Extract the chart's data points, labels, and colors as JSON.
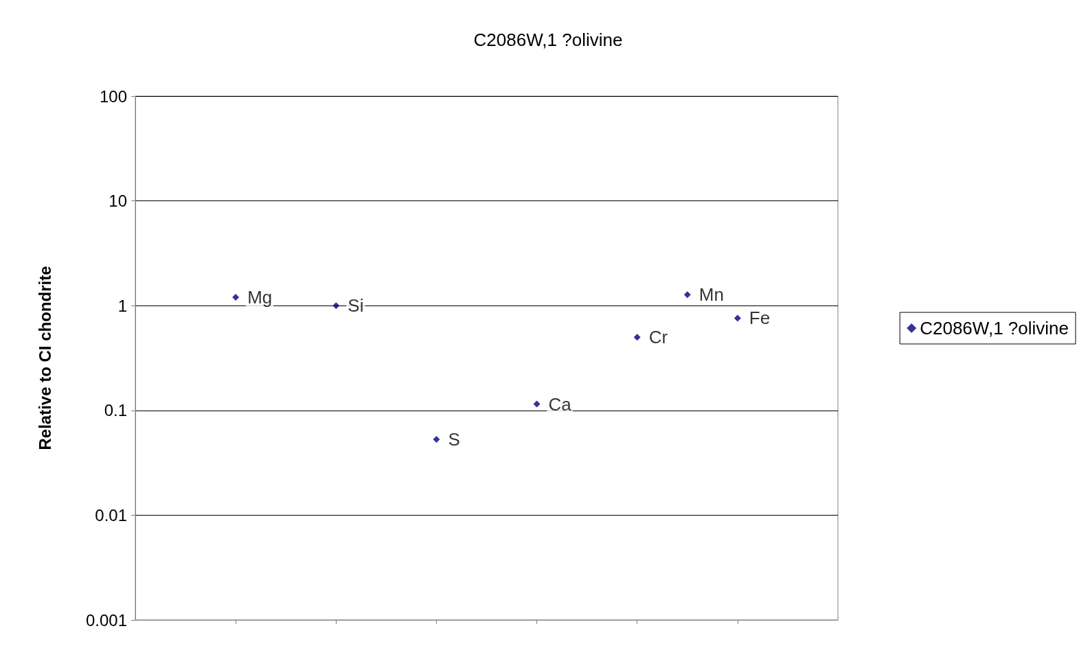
{
  "chart_data": {
    "type": "scatter",
    "title": "C2086W,1 ?olivine",
    "ylabel": "Relative to CI chondrite",
    "categories": [
      null,
      null,
      null,
      null,
      null,
      null,
      null,
      null,
      null,
      null,
      null,
      null,
      null,
      null,
      null
    ],
    "series": [
      {
        "name": "C2086W,1 ?olivine",
        "color": "#000080",
        "values": [
          null,
          null,
          1.2,
          null,
          1.0,
          null,
          0.053,
          null,
          0.115,
          null,
          0.5,
          1.27,
          0.76,
          null,
          null
        ]
      }
    ],
    "ylim": [
      0.001,
      100
    ],
    "yticks": [
      0.001,
      0.01,
      0.1,
      1,
      10,
      100
    ],
    "log": "y",
    "grid": "y",
    "legend": "right",
    "marker": "diamond",
    "tick_labels": "y",
    "annotations": [
      {
        "text": "Mg",
        "y": 1.2
      },
      {
        "text": "Si",
        "y": 1.0
      },
      {
        "text": "S",
        "y": 0.053
      },
      {
        "text": "Ca",
        "y": 0.115
      },
      {
        "text": "Cr",
        "y": 0.5
      },
      {
        "text": "Mn",
        "y": 1.27
      },
      {
        "text": "Fe",
        "y": 0.76
      }
    ]
  }
}
